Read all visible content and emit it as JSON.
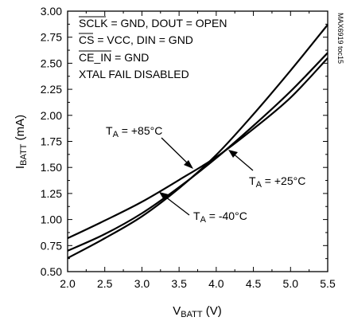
{
  "chart_data": {
    "type": "line",
    "xlabel": "V",
    "xlabel_sub": "BATT",
    "xlabel_unit": " (V)",
    "ylabel": "I",
    "ylabel_sub": "BATT",
    "ylabel_unit": " (mA)",
    "xlim": [
      2.0,
      5.5
    ],
    "ylim": [
      0.5,
      3.0
    ],
    "x_ticks": [
      "2.0",
      "2.5",
      "3.0",
      "3.5",
      "4.0",
      "4.5",
      "5.0",
      "5.5"
    ],
    "y_ticks": [
      "0.50",
      "0.75",
      "1.00",
      "1.25",
      "1.50",
      "1.75",
      "2.00",
      "2.25",
      "2.50",
      "2.75",
      "3.00"
    ],
    "grid": false,
    "conditions": [
      "SCLK = GND, DOUT = OPEN",
      "CS = VCC, DIN = GND",
      "CE_IN = GND",
      "XTAL FAIL DISABLED"
    ],
    "part_id": "MAX6919 toc15",
    "series": [
      {
        "name": "TA = +85°C",
        "label_prefix": "T",
        "label_sub": "A",
        "label_rest": " = +85°C",
        "x": [
          2.0,
          2.5,
          3.0,
          3.5,
          4.0,
          4.5,
          5.0,
          5.5
        ],
        "y": [
          0.82,
          0.99,
          1.17,
          1.38,
          1.6,
          1.87,
          2.17,
          2.55
        ]
      },
      {
        "name": "TA = +25°C",
        "label_prefix": "T",
        "label_sub": "A",
        "label_rest": " = +25°C",
        "x": [
          2.0,
          2.5,
          3.0,
          3.5,
          4.0,
          4.5,
          5.0,
          5.5
        ],
        "y": [
          0.7,
          0.86,
          1.06,
          1.31,
          1.59,
          1.9,
          2.23,
          2.6
        ]
      },
      {
        "name": "TA = -40°C",
        "label_prefix": "T",
        "label_sub": "A",
        "label_rest": " = -40°C",
        "x": [
          2.0,
          2.5,
          3.0,
          3.5,
          4.0,
          4.5,
          5.0,
          5.5
        ],
        "y": [
          0.63,
          0.82,
          1.03,
          1.3,
          1.62,
          2.01,
          2.43,
          2.87
        ]
      }
    ]
  }
}
